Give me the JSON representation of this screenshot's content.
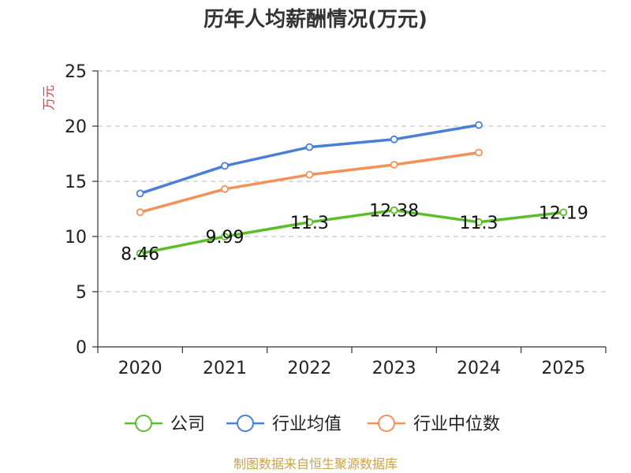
{
  "chart_data": {
    "type": "line",
    "title": "历年人均薪酬情况(万元)",
    "ylabel": "万元",
    "xlabel": "",
    "categories": [
      "2020",
      "2021",
      "2022",
      "2023",
      "2024",
      "2025"
    ],
    "ylim": [
      0,
      25
    ],
    "yticks": [
      0,
      5,
      10,
      15,
      20,
      25
    ],
    "grid": "horizontal-dashed",
    "legend_position": "bottom",
    "series": [
      {
        "name": "公司",
        "color": "#5cbd2b",
        "values": [
          8.46,
          9.99,
          11.3,
          12.38,
          11.3,
          12.19
        ],
        "labels": [
          "8.46",
          "9.99",
          "11.3",
          "12.38",
          "11.3",
          "12.19"
        ]
      },
      {
        "name": "行业均值",
        "color": "#4a7fd6",
        "values": [
          13.9,
          16.4,
          18.1,
          18.8,
          20.1,
          null
        ]
      },
      {
        "name": "行业中位数",
        "color": "#f4905a",
        "values": [
          12.2,
          14.3,
          15.6,
          16.5,
          17.6,
          null
        ]
      }
    ]
  },
  "footer": {
    "source": "制图数据来自恒生聚源数据库"
  }
}
